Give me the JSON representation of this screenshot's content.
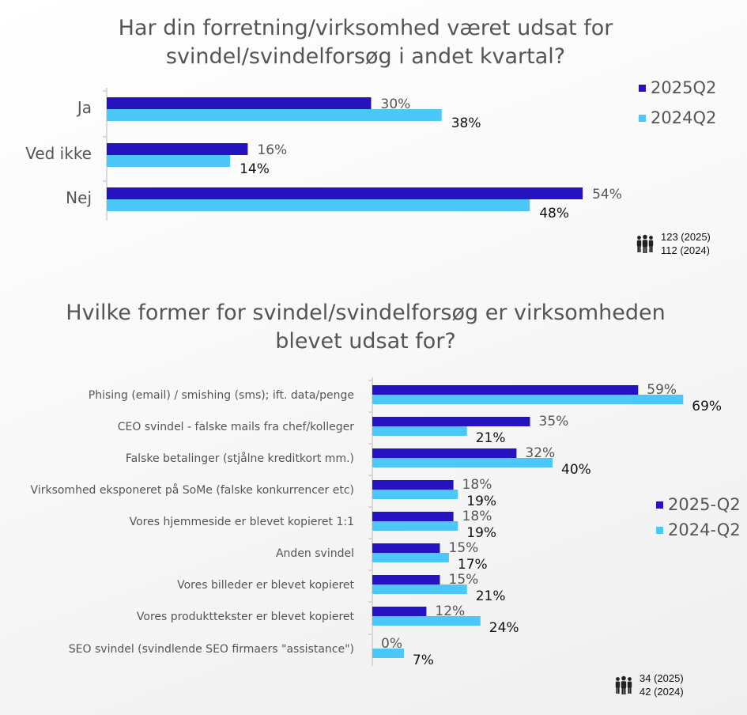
{
  "chart_data": [
    {
      "type": "bar",
      "orientation": "horizontal",
      "title": "Har din forretning/virksomhed været udsat for svindel/svindelforsøg i andet kvartal?",
      "categories": [
        "Ja",
        "Ved ikke",
        "Nej"
      ],
      "series": [
        {
          "name": "2025Q2",
          "values": [
            30,
            16,
            54
          ],
          "color": "#2613C0"
        },
        {
          "name": "2024Q2",
          "values": [
            38,
            14,
            48
          ],
          "color": "#4CC8F8"
        }
      ],
      "value_suffix": "%",
      "xlim": [
        0,
        100
      ],
      "legend_position": "right",
      "grid": false,
      "sample_sizes": [
        "123 (2025)",
        "112 (2024)"
      ],
      "sample_icon": "people-icon"
    },
    {
      "type": "bar",
      "orientation": "horizontal",
      "title": "Hvilke former for svindel/svindelforsøg er virksomheden blevet udsat for?",
      "categories": [
        "Phising (email) / smishing (sms); ift. data/penge",
        "CEO svindel - falske mails fra chef/kolleger",
        "Falske betalinger (stjålne kreditkort mm.)",
        "Virksomhed eksponeret på SoMe (falske konkurrencer etc)",
        "Vores hjemmeside er blevet kopieret 1:1",
        "Anden svindel",
        "Vores billeder er blevet kopieret",
        "Vores produkttekster er blevet kopieret",
        "SEO svindel (svindlende SEO firmaers \"assistance\")"
      ],
      "series": [
        {
          "name": "2025-Q2",
          "values": [
            59,
            35,
            32,
            18,
            18,
            15,
            15,
            12,
            0
          ],
          "color": "#2613C0"
        },
        {
          "name": "2024-Q2",
          "values": [
            69,
            21,
            40,
            19,
            19,
            17,
            21,
            24,
            7
          ],
          "color": "#4CC8F8"
        }
      ],
      "value_suffix": "%",
      "xlim": [
        0,
        100
      ],
      "legend_position": "right",
      "grid": false,
      "sample_sizes": [
        "34 (2025)",
        "42 (2024)"
      ],
      "sample_icon": "people-icon"
    }
  ]
}
